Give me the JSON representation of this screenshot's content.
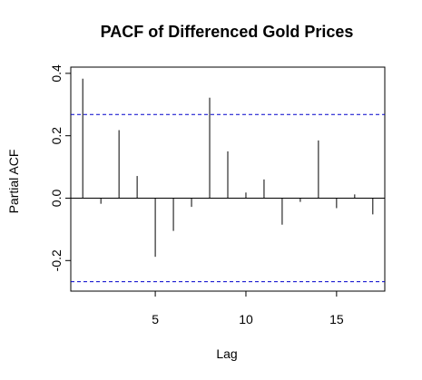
{
  "chart_data": {
    "type": "bar",
    "title": "PACF of Differenced Gold Prices",
    "xlabel": "Lag",
    "ylabel": "Partial ACF",
    "x": [
      1,
      2,
      3,
      4,
      5,
      6,
      7,
      8,
      9,
      10,
      11,
      12,
      13,
      14,
      15,
      16,
      17
    ],
    "values": [
      0.383,
      -0.018,
      0.218,
      0.071,
      -0.188,
      -0.105,
      -0.028,
      0.322,
      0.15,
      0.018,
      0.06,
      -0.085,
      -0.012,
      0.185,
      -0.032,
      0.012,
      -0.052
    ],
    "confidence_bounds": [
      0.268,
      -0.268
    ],
    "xlim": [
      0.34,
      17.66
    ],
    "ylim": [
      -0.298,
      0.42
    ],
    "xticks": [
      5,
      10,
      15
    ],
    "xtick_labels": [
      "5",
      "10",
      "15"
    ],
    "yticks": [
      -0.2,
      0.0,
      0.2,
      0.4
    ],
    "ytick_labels": [
      "-0.2",
      "0.0",
      "0.2",
      "0.4"
    ],
    "colors": {
      "bars": "#000000",
      "confidence": "#0000cc",
      "zero_line": "#000000"
    }
  }
}
